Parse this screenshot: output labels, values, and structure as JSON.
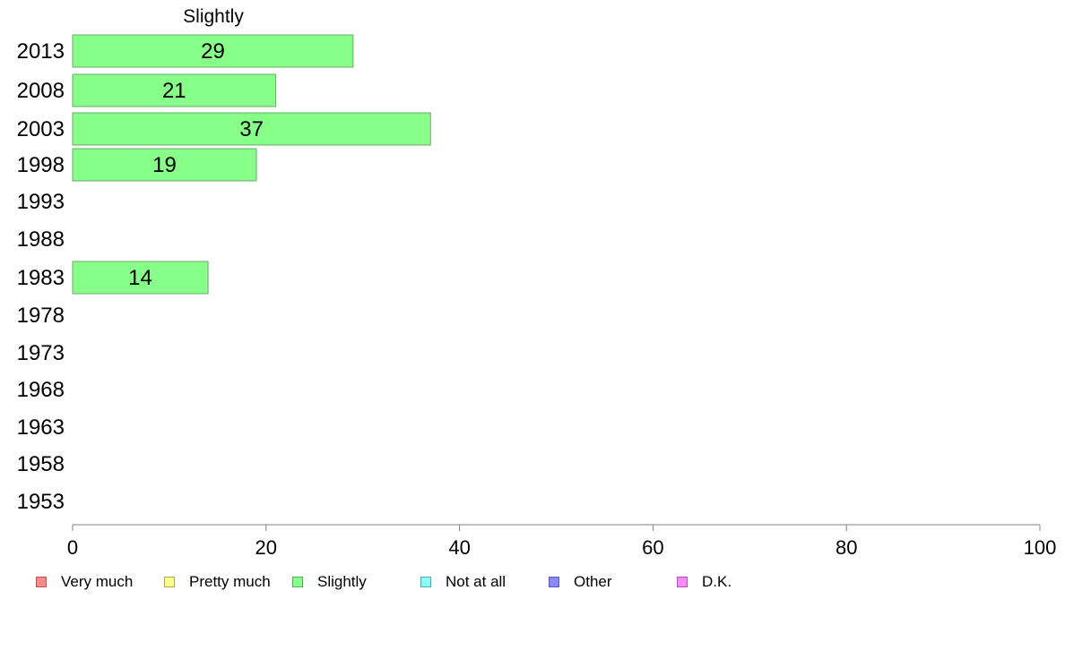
{
  "chart_data": {
    "type": "bar",
    "orientation": "horizontal",
    "title": "Slightly",
    "xlabel": "",
    "ylabel": "",
    "xlim": [
      0,
      100
    ],
    "x_ticks": [
      0,
      20,
      40,
      60,
      80,
      100
    ],
    "categories": [
      "2013",
      "2008",
      "2003",
      "1998",
      "1993",
      "1988",
      "1983",
      "1978",
      "1973",
      "1968",
      "1963",
      "1958",
      "1953"
    ],
    "series": [
      {
        "name": "Slightly",
        "values": [
          29,
          21,
          37,
          19,
          null,
          null,
          14,
          null,
          null,
          null,
          null,
          null,
          null
        ],
        "color": "#88ff88"
      }
    ],
    "grid": false,
    "legend": {
      "placement": "bottom",
      "entries": [
        {
          "label": "Very much",
          "color": "#ff8888"
        },
        {
          "label": "Pretty much",
          "color": "#ffff88"
        },
        {
          "label": "Slightly",
          "color": "#88ff88"
        },
        {
          "label": "Not at all",
          "color": "#88ffff"
        },
        {
          "label": "Other",
          "color": "#8888ff"
        },
        {
          "label": "D.K.",
          "color": "#ff88ff"
        }
      ]
    }
  }
}
